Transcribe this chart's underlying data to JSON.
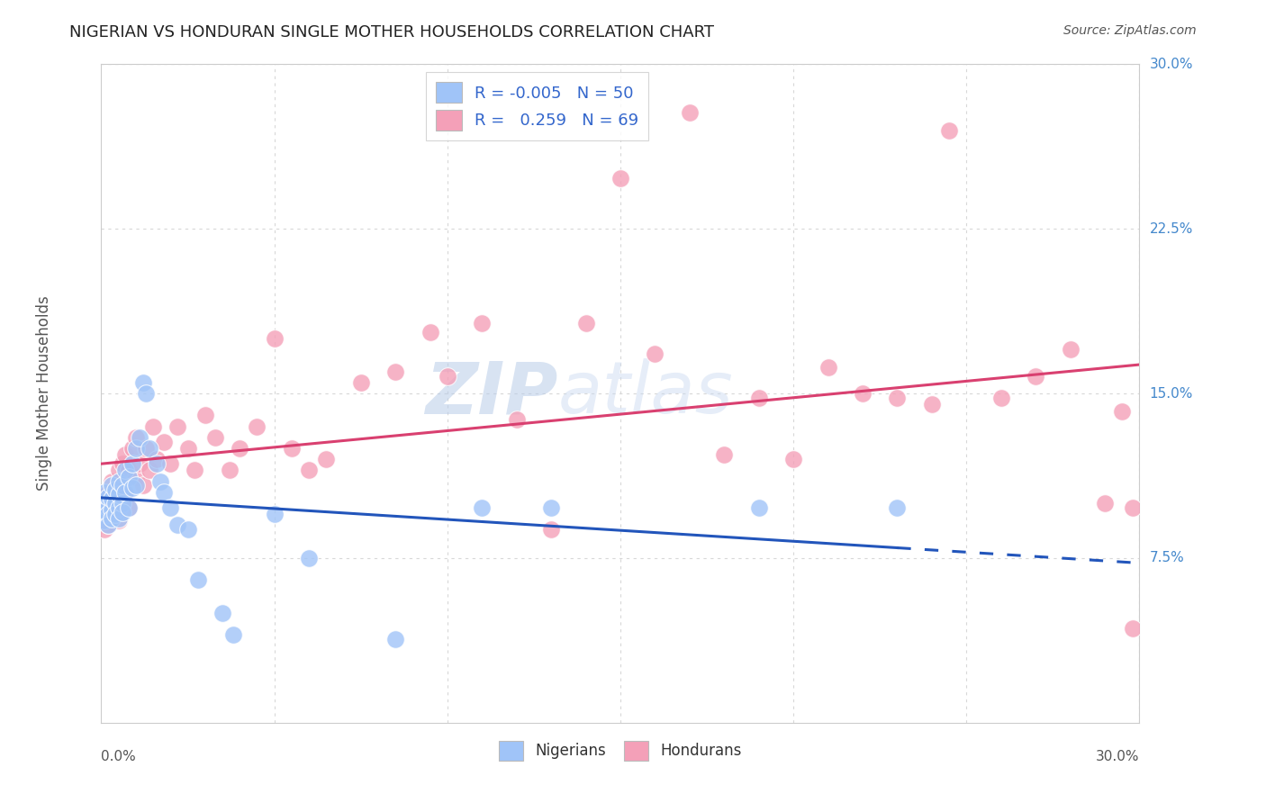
{
  "title": "NIGERIAN VS HONDURAN SINGLE MOTHER HOUSEHOLDS CORRELATION CHART",
  "source": "Source: ZipAtlas.com",
  "ylabel": "Single Mother Households",
  "xlim": [
    0.0,
    0.3
  ],
  "ylim": [
    0.0,
    0.3
  ],
  "background_color": "#ffffff",
  "grid_color": "#d8d8d8",
  "nigerian_color": "#a0c4f8",
  "honduran_color": "#f4a0b8",
  "regression_nigerian_color": "#2255bb",
  "regression_honduran_color": "#d94070",
  "legend_R_nigerian": "-0.005",
  "legend_N_nigerian": "50",
  "legend_R_honduran": "0.259",
  "legend_N_honduran": "69",
  "watermark_zip": "ZIP",
  "watermark_atlas": "atlas",
  "nigerian_x": [
    0.001,
    0.001,
    0.001,
    0.001,
    0.002,
    0.002,
    0.002,
    0.002,
    0.003,
    0.003,
    0.003,
    0.003,
    0.004,
    0.004,
    0.004,
    0.005,
    0.005,
    0.005,
    0.005,
    0.006,
    0.006,
    0.006,
    0.007,
    0.007,
    0.008,
    0.008,
    0.009,
    0.009,
    0.01,
    0.01,
    0.011,
    0.012,
    0.013,
    0.014,
    0.016,
    0.017,
    0.018,
    0.02,
    0.022,
    0.025,
    0.028,
    0.035,
    0.038,
    0.05,
    0.06,
    0.085,
    0.11,
    0.13,
    0.19,
    0.23
  ],
  "nigerian_y": [
    0.095,
    0.1,
    0.105,
    0.092,
    0.098,
    0.095,
    0.103,
    0.09,
    0.097,
    0.102,
    0.108,
    0.093,
    0.1,
    0.095,
    0.106,
    0.098,
    0.104,
    0.093,
    0.11,
    0.1,
    0.096,
    0.108,
    0.115,
    0.105,
    0.112,
    0.098,
    0.107,
    0.118,
    0.125,
    0.108,
    0.13,
    0.155,
    0.15,
    0.125,
    0.118,
    0.11,
    0.105,
    0.098,
    0.09,
    0.088,
    0.065,
    0.05,
    0.04,
    0.095,
    0.075,
    0.038,
    0.098,
    0.098,
    0.098,
    0.098
  ],
  "honduran_x": [
    0.001,
    0.001,
    0.001,
    0.002,
    0.002,
    0.002,
    0.003,
    0.003,
    0.003,
    0.004,
    0.004,
    0.005,
    0.005,
    0.005,
    0.006,
    0.006,
    0.007,
    0.007,
    0.008,
    0.008,
    0.009,
    0.01,
    0.01,
    0.011,
    0.012,
    0.013,
    0.014,
    0.015,
    0.016,
    0.018,
    0.02,
    0.022,
    0.025,
    0.027,
    0.03,
    0.033,
    0.037,
    0.04,
    0.045,
    0.05,
    0.055,
    0.06,
    0.065,
    0.075,
    0.085,
    0.095,
    0.11,
    0.13,
    0.15,
    0.17,
    0.19,
    0.21,
    0.23,
    0.245,
    0.26,
    0.27,
    0.28,
    0.29,
    0.295,
    0.298,
    0.1,
    0.12,
    0.14,
    0.16,
    0.18,
    0.2,
    0.22,
    0.24,
    0.298
  ],
  "honduran_y": [
    0.095,
    0.102,
    0.088,
    0.098,
    0.105,
    0.09,
    0.1,
    0.095,
    0.11,
    0.098,
    0.105,
    0.092,
    0.108,
    0.115,
    0.1,
    0.118,
    0.105,
    0.122,
    0.098,
    0.115,
    0.125,
    0.112,
    0.13,
    0.118,
    0.108,
    0.125,
    0.115,
    0.135,
    0.12,
    0.128,
    0.118,
    0.135,
    0.125,
    0.115,
    0.14,
    0.13,
    0.115,
    0.125,
    0.135,
    0.175,
    0.125,
    0.115,
    0.12,
    0.155,
    0.16,
    0.178,
    0.182,
    0.088,
    0.248,
    0.278,
    0.148,
    0.162,
    0.148,
    0.27,
    0.148,
    0.158,
    0.17,
    0.1,
    0.142,
    0.043,
    0.158,
    0.138,
    0.182,
    0.168,
    0.122,
    0.12,
    0.15,
    0.145,
    0.098
  ]
}
